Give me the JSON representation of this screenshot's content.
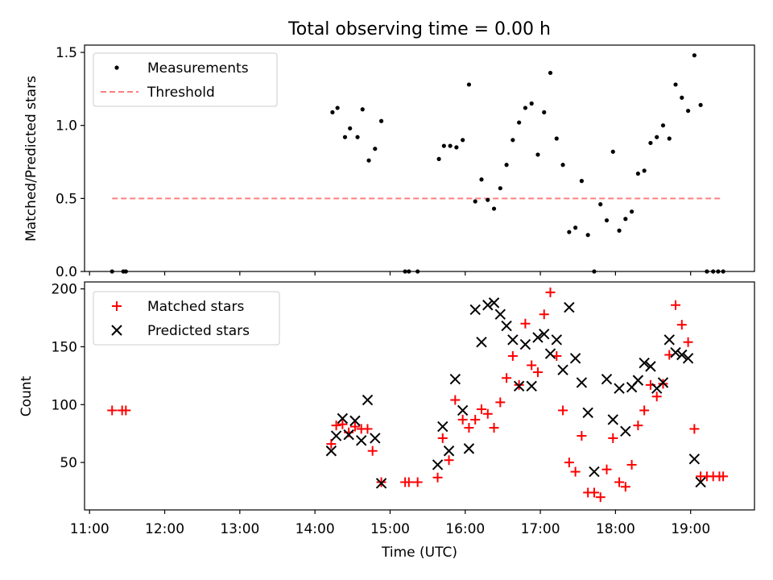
{
  "chart_data": [
    {
      "type": "scatter",
      "title": "Total observing time = 0.00 h",
      "ylabel": "Matched/Predicted stars",
      "xlabel": "",
      "xlim": [
        "10:56",
        "19:51"
      ],
      "ylim": [
        0,
        1.55
      ],
      "yticks": [
        0.0,
        0.5,
        1.0,
        1.5
      ],
      "ytick_labels": [
        "0.0",
        "0.5",
        "1.0",
        "1.5"
      ],
      "legend_position": "top-left",
      "series": [
        {
          "name": "Measurements",
          "marker": "dot",
          "color": "#000000",
          "points": [
            [
              "11:18",
              0.0
            ],
            [
              "11:27",
              0.0
            ],
            [
              "11:29",
              0.0
            ],
            [
              "14:14",
              1.09
            ],
            [
              "14:18",
              1.12
            ],
            [
              "14:24",
              0.92
            ],
            [
              "14:28",
              0.98
            ],
            [
              "14:34",
              0.92
            ],
            [
              "14:38",
              1.11
            ],
            [
              "14:43",
              0.76
            ],
            [
              "14:48",
              0.84
            ],
            [
              "14:53",
              1.03
            ],
            [
              "15:12",
              0.0
            ],
            [
              "15:15",
              0.0
            ],
            [
              "15:22",
              0.0
            ],
            [
              "15:39",
              0.77
            ],
            [
              "15:43",
              0.86
            ],
            [
              "15:48",
              0.86
            ],
            [
              "15:53",
              0.85
            ],
            [
              "15:58",
              0.9
            ],
            [
              "16:03",
              1.28
            ],
            [
              "16:08",
              0.48
            ],
            [
              "16:13",
              0.63
            ],
            [
              "16:18",
              0.49
            ],
            [
              "16:23",
              0.43
            ],
            [
              "16:28",
              0.57
            ],
            [
              "16:33",
              0.73
            ],
            [
              "16:38",
              0.9
            ],
            [
              "16:43",
              1.02
            ],
            [
              "16:48",
              1.12
            ],
            [
              "16:53",
              1.15
            ],
            [
              "16:58",
              0.8
            ],
            [
              "17:03",
              1.09
            ],
            [
              "17:08",
              1.36
            ],
            [
              "17:13",
              0.91
            ],
            [
              "17:18",
              0.73
            ],
            [
              "17:23",
              0.27
            ],
            [
              "17:28",
              0.3
            ],
            [
              "17:33",
              0.62
            ],
            [
              "17:38",
              0.25
            ],
            [
              "17:43",
              0.0
            ],
            [
              "17:48",
              0.46
            ],
            [
              "17:53",
              0.35
            ],
            [
              "17:58",
              0.82
            ],
            [
              "18:03",
              0.28
            ],
            [
              "18:08",
              0.36
            ],
            [
              "18:13",
              0.41
            ],
            [
              "18:18",
              0.67
            ],
            [
              "18:23",
              0.69
            ],
            [
              "18:28",
              0.88
            ],
            [
              "18:33",
              0.92
            ],
            [
              "18:38",
              1.0
            ],
            [
              "18:43",
              0.91
            ],
            [
              "18:48",
              1.28
            ],
            [
              "18:53",
              1.19
            ],
            [
              "18:58",
              1.1
            ],
            [
              "19:03",
              1.48
            ],
            [
              "19:08",
              1.14
            ],
            [
              "19:13",
              0.0
            ],
            [
              "19:18",
              0.0
            ],
            [
              "19:22",
              0.0
            ],
            [
              "19:26",
              0.0
            ]
          ]
        },
        {
          "name": "Threshold",
          "marker": "dashed-line",
          "color": "#ff7f7f",
          "points": [
            [
              "11:18",
              0.5
            ],
            [
              "19:26",
              0.5
            ]
          ]
        }
      ]
    },
    {
      "type": "scatter",
      "title": "",
      "ylabel": "Count",
      "xlabel": "Time (UTC)",
      "xlim": [
        "10:56",
        "19:51"
      ],
      "ylim": [
        9,
        206
      ],
      "yticks": [
        50,
        100,
        150,
        200
      ],
      "ytick_labels": [
        "50",
        "100",
        "150",
        "200"
      ],
      "xticks": [
        "11:00",
        "12:00",
        "13:00",
        "14:00",
        "15:00",
        "16:00",
        "17:00",
        "18:00",
        "19:00"
      ],
      "legend_position": "top-left",
      "series": [
        {
          "name": "Matched stars",
          "marker": "plus",
          "color": "#ff0000",
          "points": [
            [
              "11:18",
              95
            ],
            [
              "11:26",
              95
            ],
            [
              "11:29",
              95
            ],
            [
              "14:13",
              66
            ],
            [
              "14:17",
              82
            ],
            [
              "14:22",
              83
            ],
            [
              "14:27",
              76
            ],
            [
              "14:32",
              81
            ],
            [
              "14:37",
              79
            ],
            [
              "14:42",
              79
            ],
            [
              "14:46",
              60
            ],
            [
              "14:53",
              33
            ],
            [
              "15:12",
              33
            ],
            [
              "15:15",
              33
            ],
            [
              "15:22",
              33
            ],
            [
              "15:38",
              37
            ],
            [
              "15:42",
              71
            ],
            [
              "15:47",
              52
            ],
            [
              "15:52",
              104
            ],
            [
              "15:58",
              87
            ],
            [
              "16:03",
              80
            ],
            [
              "16:08",
              87
            ],
            [
              "16:13",
              96
            ],
            [
              "16:18",
              92
            ],
            [
              "16:23",
              80
            ],
            [
              "16:28",
              102
            ],
            [
              "16:33",
              123
            ],
            [
              "16:38",
              142
            ],
            [
              "16:43",
              117
            ],
            [
              "16:48",
              170
            ],
            [
              "16:53",
              134
            ],
            [
              "16:58",
              128
            ],
            [
              "17:03",
              178
            ],
            [
              "17:08",
              197
            ],
            [
              "17:13",
              142
            ],
            [
              "17:18",
              95
            ],
            [
              "17:23",
              50
            ],
            [
              "17:28",
              42
            ],
            [
              "17:33",
              73
            ],
            [
              "17:38",
              24
            ],
            [
              "17:43",
              24
            ],
            [
              "17:48",
              20
            ],
            [
              "17:53",
              44
            ],
            [
              "17:58",
              71
            ],
            [
              "18:03",
              33
            ],
            [
              "18:08",
              29
            ],
            [
              "18:13",
              48
            ],
            [
              "18:18",
              82
            ],
            [
              "18:23",
              95
            ],
            [
              "18:28",
              117
            ],
            [
              "18:33",
              107
            ],
            [
              "18:38",
              118
            ],
            [
              "18:43",
              143
            ],
            [
              "18:48",
              186
            ],
            [
              "18:53",
              169
            ],
            [
              "18:58",
              154
            ],
            [
              "19:03",
              79
            ],
            [
              "19:08",
              38
            ],
            [
              "19:13",
              38
            ],
            [
              "19:18",
              38
            ],
            [
              "19:23",
              38
            ],
            [
              "19:26",
              38
            ]
          ]
        },
        {
          "name": "Predicted stars",
          "marker": "x",
          "color": "#000000",
          "points": [
            [
              "14:13",
              60
            ],
            [
              "14:17",
              73
            ],
            [
              "14:22",
              88
            ],
            [
              "14:27",
              74
            ],
            [
              "14:32",
              86
            ],
            [
              "14:37",
              69
            ],
            [
              "14:42",
              104
            ],
            [
              "14:48",
              71
            ],
            [
              "14:53",
              32
            ],
            [
              "15:38",
              48
            ],
            [
              "15:42",
              81
            ],
            [
              "15:47",
              60
            ],
            [
              "15:52",
              122
            ],
            [
              "15:58",
              95
            ],
            [
              "16:03",
              62
            ],
            [
              "16:08",
              182
            ],
            [
              "16:13",
              154
            ],
            [
              "16:18",
              186
            ],
            [
              "16:23",
              188
            ],
            [
              "16:28",
              178
            ],
            [
              "16:33",
              168
            ],
            [
              "16:38",
              156
            ],
            [
              "16:43",
              116
            ],
            [
              "16:48",
              152
            ],
            [
              "16:53",
              116
            ],
            [
              "16:58",
              158
            ],
            [
              "17:03",
              161
            ],
            [
              "17:08",
              144
            ],
            [
              "17:13",
              156
            ],
            [
              "17:18",
              130
            ],
            [
              "17:23",
              184
            ],
            [
              "17:28",
              140
            ],
            [
              "17:33",
              119
            ],
            [
              "17:38",
              93
            ],
            [
              "17:43",
              42
            ],
            [
              "17:53",
              122
            ],
            [
              "17:58",
              87
            ],
            [
              "18:03",
              114
            ],
            [
              "18:08",
              77
            ],
            [
              "18:13",
              115
            ],
            [
              "18:18",
              121
            ],
            [
              "18:23",
              136
            ],
            [
              "18:28",
              133
            ],
            [
              "18:33",
              114
            ],
            [
              "18:38",
              119
            ],
            [
              "18:43",
              156
            ],
            [
              "18:48",
              145
            ],
            [
              "18:53",
              143
            ],
            [
              "18:58",
              140
            ],
            [
              "19:03",
              53
            ],
            [
              "19:08",
              33
            ]
          ]
        }
      ]
    }
  ]
}
